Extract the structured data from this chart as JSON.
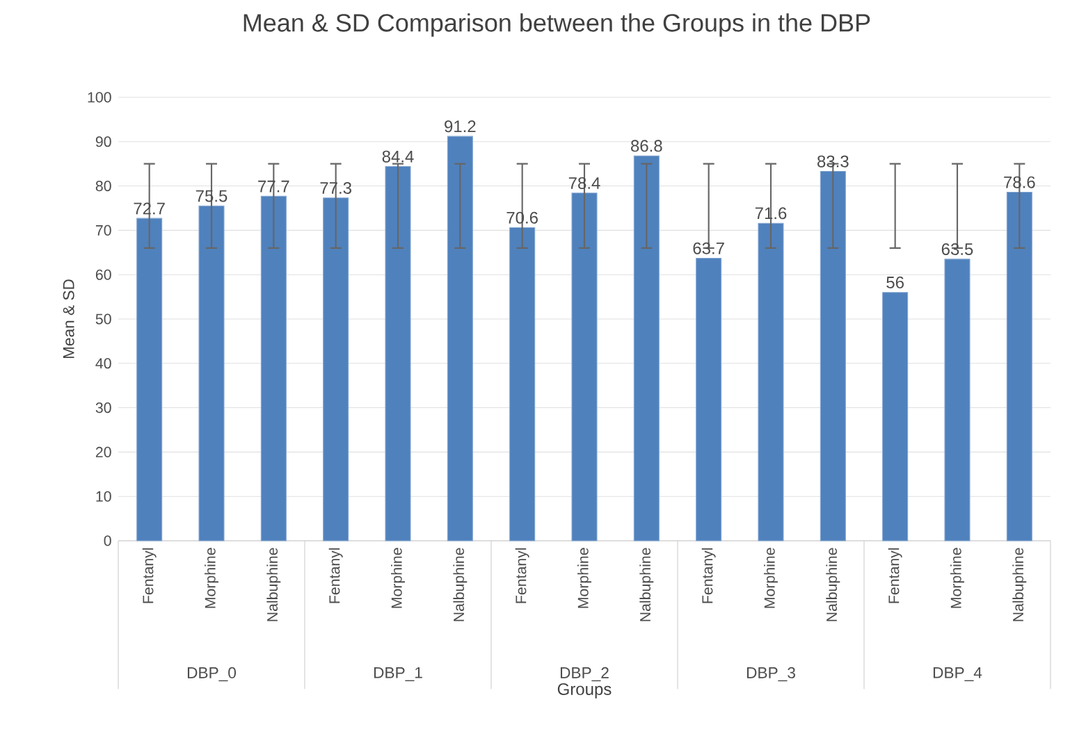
{
  "chart_data": {
    "type": "bar",
    "title": "Mean & SD Comparison between the Groups in the DBP",
    "xlabel": "Groups",
    "ylabel": "Mean & SD",
    "categories": [
      "Fentanyl",
      "Morphine",
      "Nalbuphine",
      "Fentanyl",
      "Morphine",
      "Nalbuphine",
      "Fentanyl",
      "Morphine",
      "Nalbuphine",
      "Fentanyl",
      "Morphine",
      "Nalbuphine",
      "Fentanyl",
      "Morphine",
      "Nalbuphine"
    ],
    "values": [
      72.7,
      75.5,
      77.7,
      77.3,
      84.4,
      91.2,
      70.6,
      78.4,
      86.8,
      63.7,
      71.6,
      83.3,
      56,
      63.5,
      78.6
    ],
    "errors": [
      [
        66,
        85
      ],
      [
        66,
        85
      ],
      [
        66,
        85
      ],
      [
        66,
        85
      ],
      [
        66,
        85
      ],
      [
        66,
        85
      ],
      [
        66,
        85
      ],
      [
        66,
        85
      ],
      [
        66,
        85
      ],
      [
        66,
        85
      ],
      [
        66,
        85
      ],
      [
        66,
        85
      ],
      [
        66,
        85
      ],
      [
        66,
        85
      ],
      [
        66,
        85
      ]
    ],
    "color": "#4f81bd",
    "data_labels": true,
    "grid": "y",
    "ylim": [
      0,
      100
    ],
    "yticks": [
      0,
      10,
      20,
      30,
      40,
      50,
      60,
      70,
      80,
      90,
      100
    ],
    "annotations": [
      "DBP_0",
      "DBP_1",
      "DBP_2",
      "DBP_3",
      "DBP_4"
    ]
  }
}
